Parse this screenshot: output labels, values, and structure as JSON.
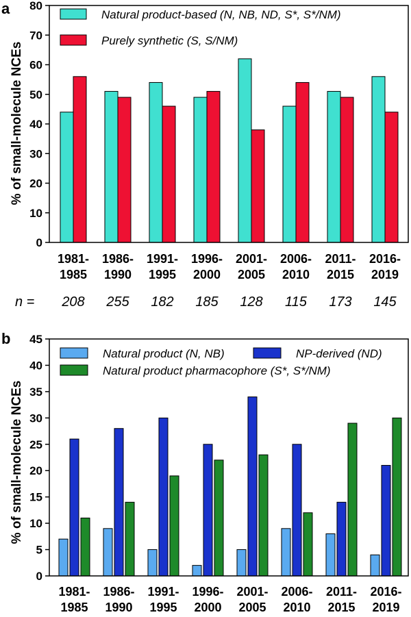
{
  "chart_data": [
    {
      "panel": "a",
      "type": "bar",
      "ylabel": "% of small-molecule NCEs",
      "ylim": [
        0,
        80
      ],
      "yticks": [
        0,
        10,
        20,
        30,
        40,
        50,
        60,
        70,
        80
      ],
      "categories": [
        [
          "1981-",
          "1985"
        ],
        [
          "1986-",
          "1990"
        ],
        [
          "1991-",
          "1995"
        ],
        [
          "1996-",
          "2000"
        ],
        [
          "2001-",
          "2005"
        ],
        [
          "2006-",
          "2010"
        ],
        [
          "2011-",
          "2015"
        ],
        [
          "2016-",
          "2019"
        ]
      ],
      "series": [
        {
          "name": "Natural product-based (N, NB, ND, S*, S*/NM)",
          "color": "#40e0d0",
          "values": [
            44,
            51,
            54,
            49,
            62,
            46,
            51,
            56
          ]
        },
        {
          "name": "Purely synthetic (S, S/NM)",
          "color": "#ee1133",
          "values": [
            56,
            49,
            46,
            51,
            38,
            54,
            49,
            44
          ]
        }
      ],
      "n_label": "n =",
      "n_values": [
        "208",
        "255",
        "182",
        "185",
        "128",
        "115",
        "173",
        "145"
      ]
    },
    {
      "panel": "b",
      "type": "bar",
      "ylabel": "% of small-molecule NCEs",
      "ylim": [
        0,
        45
      ],
      "yticks": [
        0,
        5,
        10,
        15,
        20,
        25,
        30,
        35,
        40,
        45
      ],
      "categories": [
        [
          "1981-",
          "1985"
        ],
        [
          "1986-",
          "1990"
        ],
        [
          "1991-",
          "1995"
        ],
        [
          "1996-",
          "2000"
        ],
        [
          "2001-",
          "2005"
        ],
        [
          "2006-",
          "2010"
        ],
        [
          "2011-",
          "2015"
        ],
        [
          "2016-",
          "2019"
        ]
      ],
      "series": [
        {
          "name": "Natural product (N, NB)",
          "color": "#5aaaf0",
          "values": [
            7,
            9,
            5,
            2,
            5,
            9,
            8,
            4
          ]
        },
        {
          "name": "NP-derived (ND)",
          "color": "#1a33cc",
          "values": [
            26,
            28,
            30,
            25,
            34,
            25,
            14,
            21
          ]
        },
        {
          "name": "Natural product pharmacophore (S*, S*/NM)",
          "color": "#1e8a2a",
          "values": [
            11,
            14,
            19,
            22,
            23,
            12,
            29,
            30
          ]
        }
      ]
    }
  ]
}
